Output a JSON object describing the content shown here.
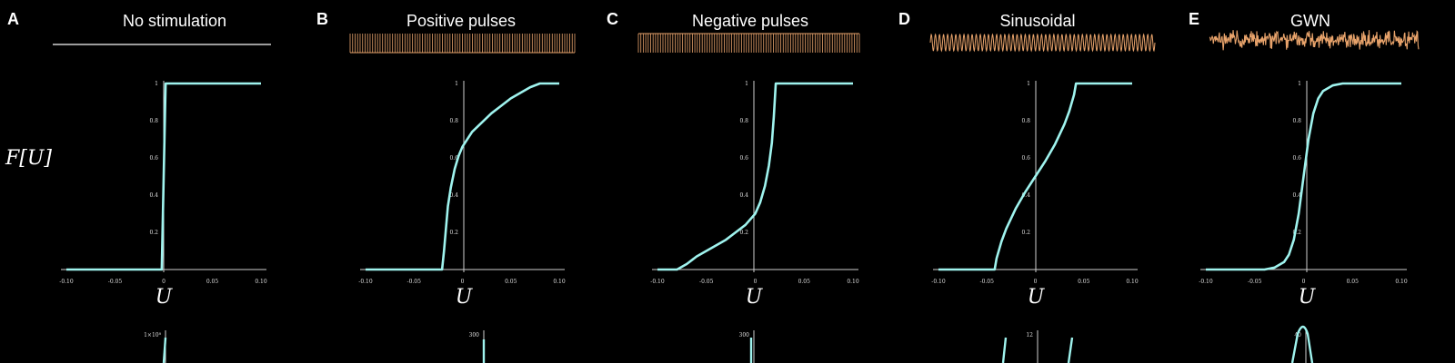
{
  "figure": {
    "y_axis_label": "F[U]",
    "background": "#000000",
    "curve_color": "#9ff3ee",
    "stim_color": "#e8a36b",
    "axis_color": "#cfcfcf"
  },
  "chart_data": [
    {
      "type": "line",
      "letter": "A",
      "title": "No stimulation",
      "stimulus": "none",
      "xlabel": "U",
      "ylabel": "F[U]",
      "xlim": [
        -0.1,
        0.1
      ],
      "ylim": [
        0,
        1
      ],
      "x_ticks": [
        "-0.10",
        "-0.05",
        "0",
        "0.05",
        "0.10"
      ],
      "y_ticks": [
        "0.2",
        "0.4",
        "0.6",
        "0.8",
        "1"
      ],
      "series": [
        {
          "x": [
            -0.1,
            -0.002,
            0.0,
            0.002,
            0.1
          ],
          "y": [
            0.0,
            0.0,
            0.5,
            1.0,
            1.0
          ]
        }
      ]
    },
    {
      "type": "line",
      "letter": "B",
      "title": "Positive pulses",
      "stimulus": "pulses-positive",
      "xlabel": "U",
      "ylabel": "F[U]",
      "xlim": [
        -0.1,
        0.1
      ],
      "ylim": [
        0,
        1
      ],
      "x_ticks": [
        "-0.10",
        "-0.05",
        "0",
        "0.05",
        "0.10"
      ],
      "y_ticks": [
        "0.2",
        "0.4",
        "0.6",
        "0.8",
        "1"
      ],
      "series": [
        {
          "x": [
            -0.1,
            -0.04,
            -0.021,
            -0.019,
            -0.017,
            -0.015,
            -0.012,
            -0.008,
            -0.004,
            0.0,
            0.01,
            0.02,
            0.03,
            0.04,
            0.05,
            0.06,
            0.07,
            0.08,
            0.1
          ],
          "y": [
            0.0,
            0.0,
            0.0,
            0.1,
            0.22,
            0.34,
            0.44,
            0.54,
            0.61,
            0.66,
            0.74,
            0.79,
            0.84,
            0.88,
            0.92,
            0.95,
            0.98,
            1.0,
            1.0
          ]
        }
      ]
    },
    {
      "type": "line",
      "letter": "C",
      "title": "Negative pulses",
      "stimulus": "pulses-negative",
      "xlabel": "U",
      "ylabel": "F[U]",
      "xlim": [
        -0.1,
        0.1
      ],
      "ylim": [
        0,
        1
      ],
      "x_ticks": [
        "-0.10",
        "-0.05",
        "0",
        "0.05",
        "0.10"
      ],
      "y_ticks": [
        "0.2",
        "0.4",
        "0.6",
        "0.8",
        "1"
      ],
      "series": [
        {
          "x": [
            -0.1,
            -0.08,
            -0.07,
            -0.06,
            -0.05,
            -0.04,
            -0.03,
            -0.02,
            -0.01,
            0.0,
            0.005,
            0.01,
            0.014,
            0.017,
            0.019,
            0.021,
            0.1
          ],
          "y": [
            0.0,
            0.0,
            0.03,
            0.07,
            0.1,
            0.13,
            0.16,
            0.2,
            0.24,
            0.3,
            0.36,
            0.45,
            0.56,
            0.68,
            0.82,
            1.0,
            1.0
          ]
        }
      ]
    },
    {
      "type": "line",
      "letter": "D",
      "title": "Sinusoidal",
      "stimulus": "sinusoidal",
      "xlabel": "U",
      "ylabel": "F[U]",
      "xlim": [
        -0.1,
        0.1
      ],
      "ylim": [
        0,
        1
      ],
      "x_ticks": [
        "-0.10",
        "-0.05",
        "0",
        "0.05",
        "0.10"
      ],
      "y_ticks": [
        "0.2",
        "0.4",
        "0.6",
        "0.8",
        "1"
      ],
      "series": [
        {
          "x": [
            -0.1,
            -0.042,
            -0.04,
            -0.035,
            -0.03,
            -0.02,
            -0.01,
            0.0,
            0.01,
            0.02,
            0.03,
            0.035,
            0.04,
            0.042,
            0.1
          ],
          "y": [
            0.0,
            0.0,
            0.06,
            0.15,
            0.22,
            0.33,
            0.42,
            0.5,
            0.58,
            0.67,
            0.78,
            0.85,
            0.94,
            1.0,
            1.0
          ]
        }
      ]
    },
    {
      "type": "line",
      "letter": "E",
      "title": "GWN",
      "stimulus": "gwn",
      "xlabel": "U",
      "ylabel": "F[U]",
      "xlim": [
        -0.1,
        0.1
      ],
      "ylim": [
        0,
        1
      ],
      "x_ticks": [
        "-0.10",
        "-0.05",
        "0",
        "0.05",
        "0.10"
      ],
      "y_ticks": [
        "0.2",
        "0.4",
        "0.6",
        "0.8",
        "1"
      ],
      "series": [
        {
          "x": [
            -0.1,
            -0.04,
            -0.03,
            -0.02,
            -0.015,
            -0.01,
            -0.005,
            0.0,
            0.005,
            0.01,
            0.015,
            0.02,
            0.03,
            0.04,
            0.1
          ],
          "y": [
            0.0,
            0.0,
            0.01,
            0.04,
            0.08,
            0.16,
            0.3,
            0.5,
            0.7,
            0.84,
            0.92,
            0.96,
            0.99,
            1.0,
            1.0
          ]
        }
      ]
    }
  ],
  "lower_row": [
    {
      "letter": "A",
      "y_top_tick": "1×10⁸"
    },
    {
      "letter": "B",
      "y_top_tick": "300"
    },
    {
      "letter": "C",
      "y_top_tick": "300"
    },
    {
      "letter": "D",
      "y_top_tick": "12"
    },
    {
      "letter": "E",
      "y_top_tick": "40"
    }
  ]
}
